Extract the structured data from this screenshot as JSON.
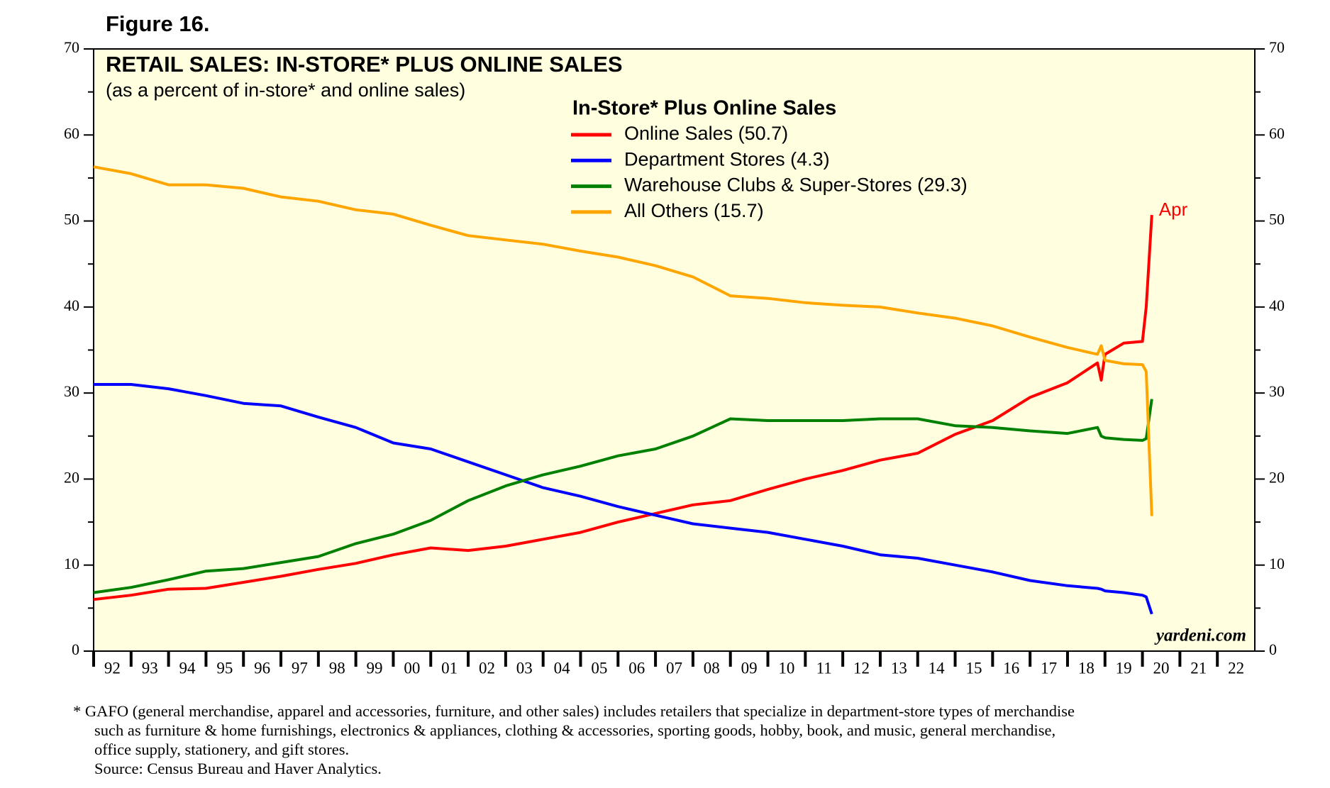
{
  "chart_data": {
    "type": "line",
    "figure_label": "Figure 16.",
    "title": "RETAIL SALES: IN-STORE* PLUS ONLINE SALES",
    "subtitle": "(as a percent of in-store* and online sales)",
    "legend_title": "In-Store* Plus Online Sales",
    "annotation": "Apr",
    "watermark": "yardeni.com",
    "footnote": [
      "*   GAFO (general merchandise, apparel and accessories, furniture, and other sales) includes retailers that specialize in department-store types of merchandise",
      "such as furniture & home furnishings, electronics & appliances, clothing & accessories, sporting goods, hobby, book, and music, general merchandise,",
      "office supply, stationery, and gift stores.",
      "Source: Census Bureau and Haver Analytics."
    ],
    "x": [
      1992,
      1993,
      1994,
      1995,
      1996,
      1997,
      1998,
      1999,
      2000,
      2001,
      2002,
      2003,
      2004,
      2005,
      2006,
      2007,
      2008,
      2009,
      2010,
      2011,
      2012,
      2013,
      2014,
      2015,
      2016,
      2017,
      2018,
      2018.8,
      2018.9,
      2019,
      2019.5,
      2020,
      2020.1,
      2020.25
    ],
    "series": [
      {
        "name": "Online Sales (50.7)",
        "color": "#ff0000",
        "values": [
          6,
          6.5,
          7.2,
          7.3,
          8,
          8.7,
          9.5,
          10.2,
          11.2,
          12,
          11.7,
          12.2,
          13,
          13.8,
          15,
          16,
          17,
          17.5,
          18.8,
          20,
          21,
          22.2,
          23,
          25.2,
          26.8,
          29.5,
          31.2,
          33.5,
          31.5,
          34.5,
          35.8,
          36,
          40,
          50.7
        ]
      },
      {
        "name": "Department Stores (4.3)",
        "color": "#0000ff",
        "values": [
          31,
          31,
          30.5,
          29.7,
          28.8,
          28.5,
          27.2,
          26,
          24.2,
          23.5,
          22,
          20.5,
          19,
          18,
          16.8,
          15.8,
          14.8,
          14.3,
          13.8,
          13,
          12.2,
          11.2,
          10.8,
          10,
          9.2,
          8.2,
          7.6,
          7.3,
          7.2,
          7,
          6.8,
          6.5,
          6.3,
          4.3
        ]
      },
      {
        "name": "Warehouse Clubs & Super-Stores (29.3)",
        "color": "#008000",
        "values": [
          6.8,
          7.4,
          8.3,
          9.3,
          9.6,
          10.3,
          11,
          12.5,
          13.6,
          15.2,
          17.5,
          19.2,
          20.5,
          21.5,
          22.7,
          23.5,
          25,
          27,
          26.8,
          26.8,
          26.8,
          27,
          27,
          26.2,
          26,
          25.6,
          25.3,
          26,
          25,
          24.8,
          24.6,
          24.5,
          24.7,
          29.3
        ]
      },
      {
        "name": "All Others (15.7)",
        "color": "#ffa500",
        "values": [
          56.3,
          55.5,
          54.2,
          54.2,
          53.8,
          52.8,
          52.3,
          51.3,
          50.8,
          49.5,
          48.3,
          47.8,
          47.3,
          46.5,
          45.8,
          44.8,
          43.5,
          41.3,
          41,
          40.5,
          40.2,
          40,
          39.3,
          38.7,
          37.8,
          36.5,
          35.3,
          34.5,
          35.5,
          33.8,
          33.4,
          33.3,
          32.5,
          15.7
        ]
      }
    ],
    "xlim": [
      1992,
      2023
    ],
    "xticks": [
      {
        "value": 1992,
        "label": "92"
      },
      {
        "value": 1993,
        "label": "93"
      },
      {
        "value": 1994,
        "label": "94"
      },
      {
        "value": 1995,
        "label": "95"
      },
      {
        "value": 1996,
        "label": "96"
      },
      {
        "value": 1997,
        "label": "97"
      },
      {
        "value": 1998,
        "label": "98"
      },
      {
        "value": 1999,
        "label": "99"
      },
      {
        "value": 2000,
        "label": "00"
      },
      {
        "value": 2001,
        "label": "01"
      },
      {
        "value": 2002,
        "label": "02"
      },
      {
        "value": 2003,
        "label": "03"
      },
      {
        "value": 2004,
        "label": "04"
      },
      {
        "value": 2005,
        "label": "05"
      },
      {
        "value": 2006,
        "label": "06"
      },
      {
        "value": 2007,
        "label": "07"
      },
      {
        "value": 2008,
        "label": "08"
      },
      {
        "value": 2009,
        "label": "09"
      },
      {
        "value": 2010,
        "label": "10"
      },
      {
        "value": 2011,
        "label": "11"
      },
      {
        "value": 2012,
        "label": "12"
      },
      {
        "value": 2013,
        "label": "13"
      },
      {
        "value": 2014,
        "label": "14"
      },
      {
        "value": 2015,
        "label": "15"
      },
      {
        "value": 2016,
        "label": "16"
      },
      {
        "value": 2017,
        "label": "17"
      },
      {
        "value": 2018,
        "label": "18"
      },
      {
        "value": 2019,
        "label": "19"
      },
      {
        "value": 2020,
        "label": "20"
      },
      {
        "value": 2021,
        "label": "21"
      },
      {
        "value": 2022,
        "label": "22"
      }
    ],
    "ylim": [
      0,
      70
    ],
    "yticks": [
      0,
      10,
      20,
      30,
      40,
      50,
      60,
      70
    ],
    "background": "#ffffe0",
    "grid": false
  }
}
